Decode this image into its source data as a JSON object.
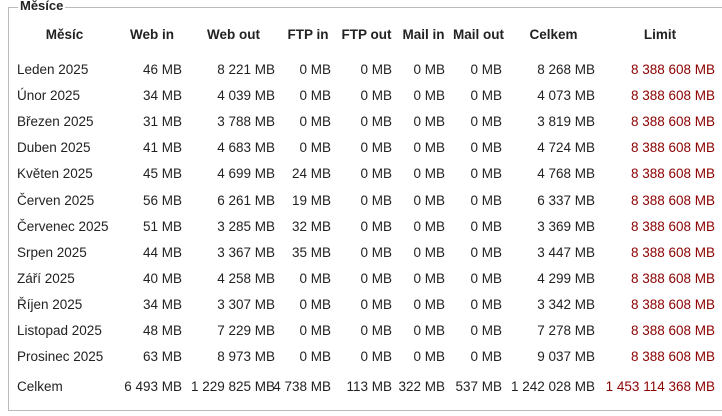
{
  "legend": "Měsíce",
  "table": {
    "header": [
      "Měsíc",
      "Web in",
      "Web out",
      "FTP in",
      "FTP out",
      "Mail in",
      "Mail out",
      "Celkem",
      "Limit"
    ],
    "rows": [
      [
        "Leden 2025",
        "46 MB",
        "8 221 MB",
        "0 MB",
        "0 MB",
        "0 MB",
        "0 MB",
        "8 268 MB",
        "8 388 608 MB"
      ],
      [
        "Únor 2025",
        "34 MB",
        "4 039 MB",
        "0 MB",
        "0 MB",
        "0 MB",
        "0 MB",
        "4 073 MB",
        "8 388 608 MB"
      ],
      [
        "Březen 2025",
        "31 MB",
        "3 788 MB",
        "0 MB",
        "0 MB",
        "0 MB",
        "0 MB",
        "3 819 MB",
        "8 388 608 MB"
      ],
      [
        "Duben 2025",
        "41 MB",
        "4 683 MB",
        "0 MB",
        "0 MB",
        "0 MB",
        "0 MB",
        "4 724 MB",
        "8 388 608 MB"
      ],
      [
        "Květen 2025",
        "45 MB",
        "4 699 MB",
        "24 MB",
        "0 MB",
        "0 MB",
        "0 MB",
        "4 768 MB",
        "8 388 608 MB"
      ],
      [
        "Červen 2025",
        "56 MB",
        "6 261 MB",
        "19 MB",
        "0 MB",
        "0 MB",
        "0 MB",
        "6 337 MB",
        "8 388 608 MB"
      ],
      [
        "Červenec 2025",
        "51 MB",
        "3 285 MB",
        "32 MB",
        "0 MB",
        "0 MB",
        "0 MB",
        "3 369 MB",
        "8 388 608 MB"
      ],
      [
        "Srpen 2025",
        "44 MB",
        "3 367 MB",
        "35 MB",
        "0 MB",
        "0 MB",
        "0 MB",
        "3 447 MB",
        "8 388 608 MB"
      ],
      [
        "Září 2025",
        "40 MB",
        "4 258 MB",
        "0 MB",
        "0 MB",
        "0 MB",
        "0 MB",
        "4 299 MB",
        "8 388 608 MB"
      ],
      [
        "Říjen 2025",
        "34 MB",
        "3 307 MB",
        "0 MB",
        "0 MB",
        "0 MB",
        "0 MB",
        "3 342 MB",
        "8 388 608 MB"
      ],
      [
        "Listopad 2025",
        "48 MB",
        "7 229 MB",
        "0 MB",
        "0 MB",
        "0 MB",
        "0 MB",
        "7 278 MB",
        "8 388 608 MB"
      ],
      [
        "Prosinec 2025",
        "63 MB",
        "8 973 MB",
        "0 MB",
        "0 MB",
        "0 MB",
        "0 MB",
        "9 037 MB",
        "8 388 608 MB"
      ]
    ],
    "total": [
      "Celkem",
      "6 493 MB",
      "1 229 825 MB",
      "4 738 MB",
      "113 MB",
      "322 MB",
      "537 MB",
      "1 242 028 MB",
      "1 453 114 368 MB"
    ]
  }
}
